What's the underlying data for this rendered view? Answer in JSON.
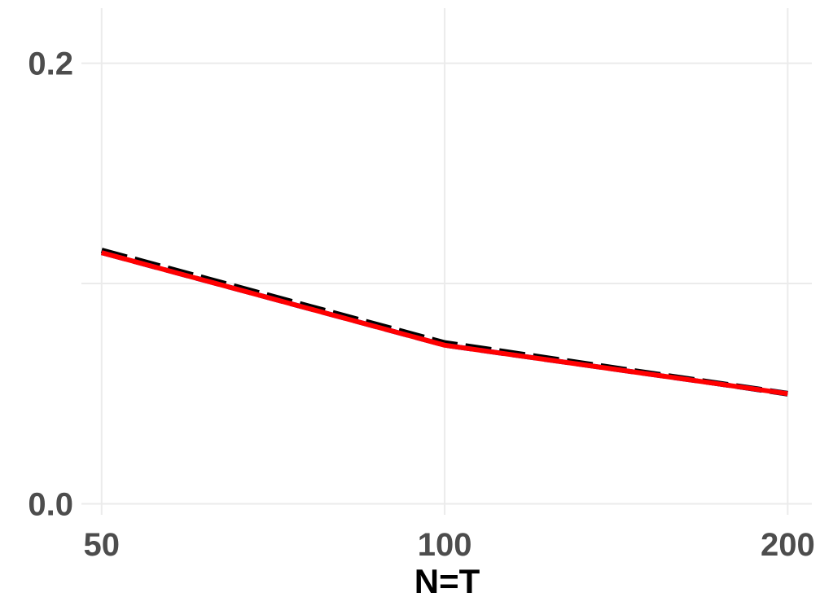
{
  "chart_data": {
    "type": "line",
    "title": "",
    "xlabel": "N=T",
    "ylabel": "",
    "x": [
      50,
      100,
      200
    ],
    "x_scale": "log",
    "xlim": [
      48,
      210
    ],
    "ylim": [
      -0.005,
      0.225
    ],
    "x_ticks": [
      50,
      100,
      200
    ],
    "x_tick_labels": [
      "50",
      "100",
      "200"
    ],
    "y_ticks": [
      0.0,
      0.2
    ],
    "y_tick_labels": [
      "0.0",
      "0.2"
    ],
    "y_minor_gridlines": [
      0.1
    ],
    "grid": true,
    "legend": "none",
    "series": [
      {
        "values": [
          0.115,
          0.073,
          0.05
        ],
        "color": "#000000",
        "line_style": "dashed"
      },
      {
        "values": [
          0.114,
          0.072,
          0.05
        ],
        "color": "#0000cd",
        "line_style": "dashed"
      },
      {
        "values": [
          0.114,
          0.072,
          0.05
        ],
        "color": "#ff0000",
        "line_style": "solid"
      }
    ]
  }
}
